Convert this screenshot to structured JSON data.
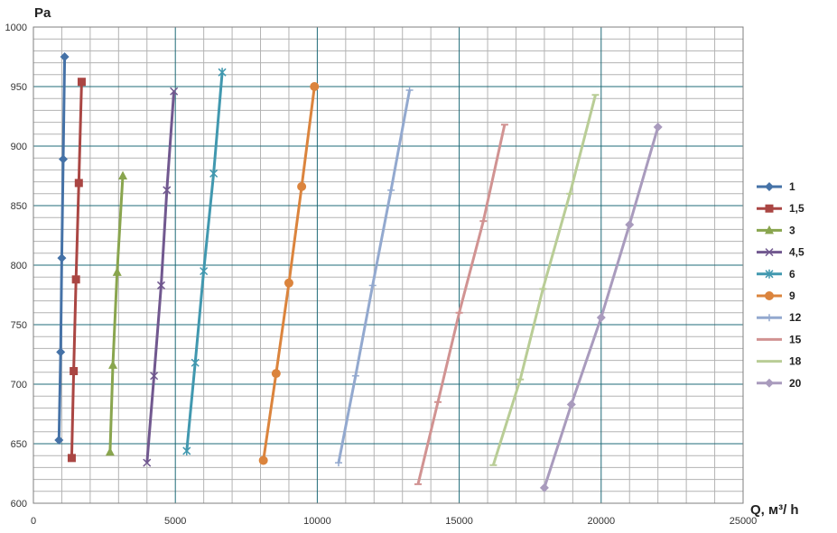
{
  "chart_data": {
    "type": "line",
    "title": "",
    "ylabel": "Pa",
    "xlabel": "Q, м³/ h",
    "xlim": [
      0,
      25000
    ],
    "ylim": [
      600,
      1000
    ],
    "x_major_step": 5000,
    "x_minor_step": 1000,
    "y_major_step": 50,
    "y_minor_step": 10,
    "x_ticks": [
      "0",
      "5000",
      "10000",
      "15000",
      "20000",
      "25000"
    ],
    "y_ticks": [
      "600",
      "650",
      "700",
      "750",
      "800",
      "850",
      "900",
      "950",
      "1000"
    ],
    "grid": true,
    "legend_position": "right",
    "series": [
      {
        "name": "1",
        "color": "#4572a7",
        "marker": "diamond",
        "points": [
          [
            900,
            653
          ],
          [
            960,
            727
          ],
          [
            1000,
            806
          ],
          [
            1050,
            889
          ],
          [
            1100,
            975
          ]
        ]
      },
      {
        "name": "1,5",
        "color": "#aa4643",
        "marker": "square",
        "points": [
          [
            1350,
            638
          ],
          [
            1420,
            711
          ],
          [
            1500,
            788
          ],
          [
            1600,
            869
          ],
          [
            1700,
            954
          ]
        ]
      },
      {
        "name": "3",
        "color": "#89a54e",
        "marker": "triangle",
        "points": [
          [
            2700,
            643
          ],
          [
            2800,
            716
          ],
          [
            2950,
            794
          ],
          [
            3150,
            875
          ]
        ]
      },
      {
        "name": "4,5",
        "color": "#71588f",
        "marker": "x",
        "points": [
          [
            4000,
            634
          ],
          [
            4250,
            707
          ],
          [
            4500,
            783
          ],
          [
            4700,
            863
          ],
          [
            4950,
            946
          ]
        ]
      },
      {
        "name": "6",
        "color": "#4198af",
        "marker": "star",
        "points": [
          [
            5400,
            644
          ],
          [
            5700,
            718
          ],
          [
            6000,
            795
          ],
          [
            6350,
            877
          ],
          [
            6650,
            962
          ]
        ]
      },
      {
        "name": "9",
        "color": "#db843d",
        "marker": "circle",
        "points": [
          [
            8100,
            636
          ],
          [
            8550,
            709
          ],
          [
            9000,
            785
          ],
          [
            9450,
            866
          ],
          [
            9900,
            950
          ]
        ]
      },
      {
        "name": "12",
        "color": "#93a9cf",
        "marker": "plus",
        "points": [
          [
            10750,
            634
          ],
          [
            11350,
            707
          ],
          [
            11950,
            783
          ],
          [
            12600,
            863
          ],
          [
            13250,
            947
          ]
        ]
      },
      {
        "name": "15",
        "color": "#d19392",
        "marker": "dash",
        "points": [
          [
            13550,
            616
          ],
          [
            14250,
            685
          ],
          [
            15000,
            760
          ],
          [
            15850,
            837
          ],
          [
            16600,
            918
          ]
        ]
      },
      {
        "name": "18",
        "color": "#b9cd96",
        "marker": "dash",
        "points": [
          [
            16200,
            632
          ],
          [
            17150,
            704
          ],
          [
            17950,
            780
          ],
          [
            18900,
            860
          ],
          [
            19800,
            943
          ]
        ]
      },
      {
        "name": "20",
        "color": "#a99bbd",
        "marker": "diamond",
        "points": [
          [
            18000,
            613
          ],
          [
            18950,
            683
          ],
          [
            20000,
            756
          ],
          [
            21000,
            834
          ],
          [
            22000,
            916
          ]
        ]
      }
    ]
  }
}
